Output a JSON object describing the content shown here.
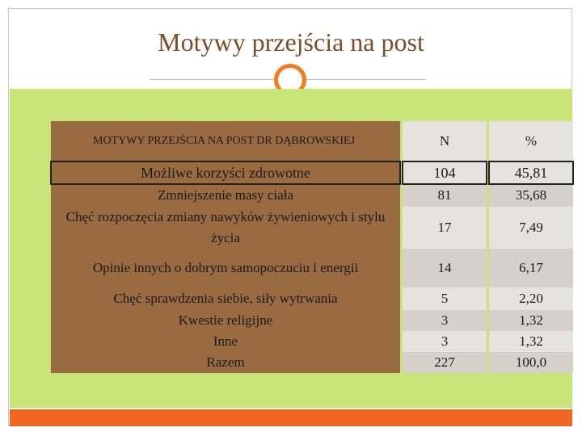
{
  "title": "Motywy przejścia na post",
  "table": {
    "header": [
      "MOTYWY PRZEJŚCIA NA POST DR DĄBROWSKIEJ",
      "N",
      "%"
    ],
    "rows": [
      [
        "Możliwe korzyści zdrowotne",
        "104",
        "45,81"
      ],
      [
        "Zmniejszenie masy ciała",
        "81",
        "35,68"
      ],
      [
        "Chęć rozpoczęcia zmiany nawyków żywieniowych i stylu życia",
        "17",
        "7,49"
      ],
      [
        "Opinie innych o dobrym samopoczuciu i energii",
        "14",
        "6,17"
      ],
      [
        "Chęć sprawdzenia siebie, siły wytrwania",
        "5",
        "2,20"
      ],
      [
        "Kwestie religijne",
        "3",
        "1,32"
      ],
      [
        "Inne",
        "3",
        "1,32"
      ],
      [
        "Razem",
        "227",
        "100,0"
      ]
    ]
  }
}
